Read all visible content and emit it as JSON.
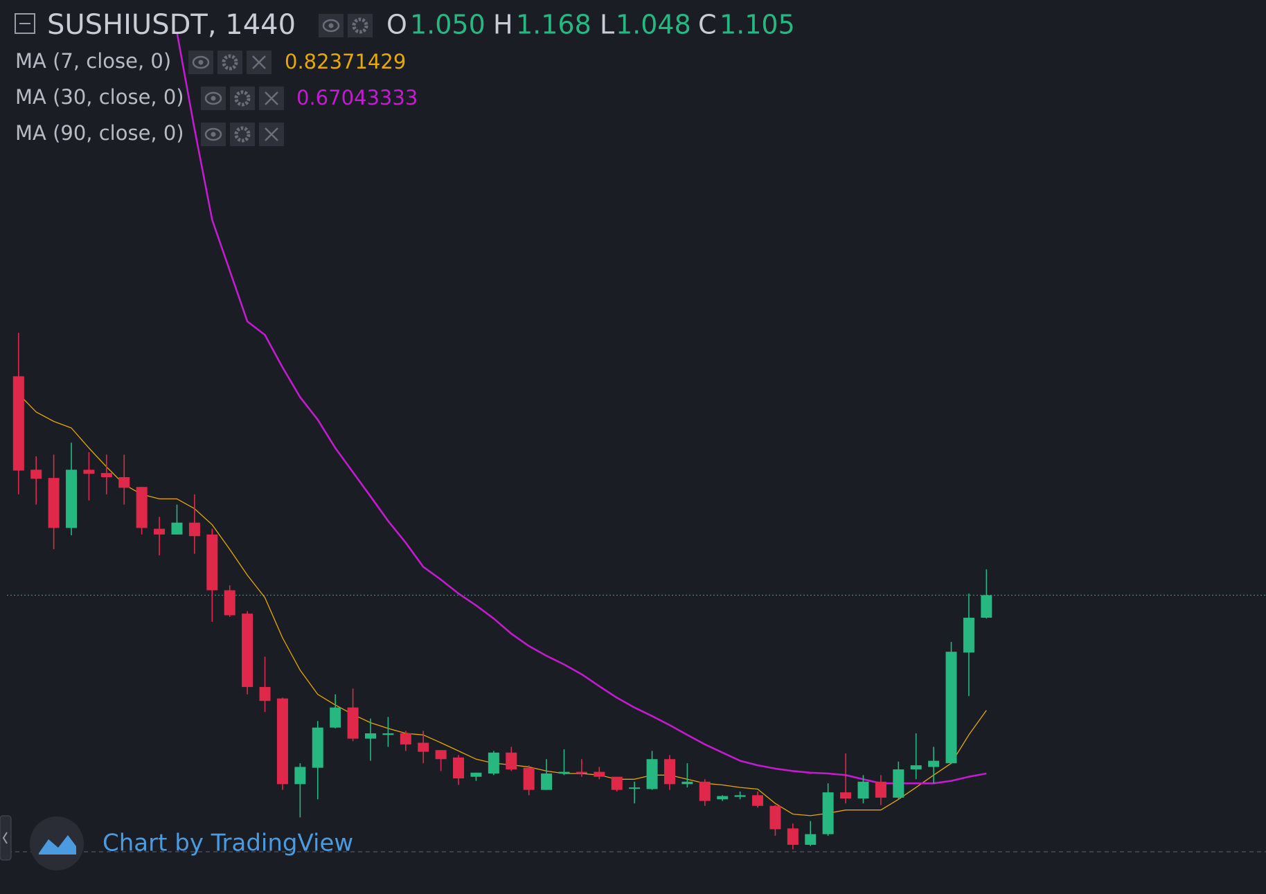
{
  "chart_data": {
    "type": "candlestick",
    "title": "SUSHIUSDT, 1440",
    "ohlc_keys": [
      "O",
      "H",
      "L",
      "C"
    ],
    "ohlc_value_labels": [
      "1.050",
      "1.168",
      "1.048",
      "1.105"
    ],
    "up_color": "#26b880",
    "down_color": "#e0294a",
    "ylim": [
      0.376,
      2.557
    ],
    "open": [
      1.639,
      1.411,
      1.391,
      1.269,
      1.411,
      1.403,
      1.393,
      1.369,
      1.267,
      1.253,
      1.282,
      1.253,
      1.117,
      1.06,
      0.881,
      0.853,
      0.644,
      0.684,
      0.782,
      0.831,
      0.755,
      0.764,
      0.768,
      0.745,
      0.727,
      0.709,
      0.662,
      0.67,
      0.721,
      0.684,
      0.63,
      0.67,
      0.674,
      0.674,
      0.662,
      0.634,
      0.632,
      0.705,
      0.644,
      0.65,
      0.607,
      0.613,
      0.617,
      0.591,
      0.536,
      0.496,
      0.522,
      0.624,
      0.609,
      0.65,
      0.611,
      0.68,
      0.686,
      0.695,
      0.965,
      1.05
    ],
    "high": [
      1.745,
      1.444,
      1.448,
      1.477,
      1.454,
      1.448,
      1.448,
      1.369,
      1.296,
      1.326,
      1.351,
      1.267,
      1.129,
      1.066,
      0.955,
      0.855,
      0.695,
      0.798,
      0.863,
      0.877,
      0.804,
      0.808,
      0.774,
      0.774,
      0.727,
      0.715,
      0.672,
      0.725,
      0.735,
      0.69,
      0.705,
      0.729,
      0.705,
      0.686,
      0.662,
      0.65,
      0.725,
      0.715,
      0.695,
      0.656,
      0.617,
      0.626,
      0.626,
      0.593,
      0.548,
      0.554,
      0.646,
      0.719,
      0.666,
      0.666,
      0.699,
      0.768,
      0.735,
      0.991,
      1.109,
      1.168
    ],
    "low": [
      1.351,
      1.326,
      1.217,
      1.251,
      1.336,
      1.351,
      1.326,
      1.253,
      1.202,
      1.253,
      1.206,
      1.04,
      1.052,
      0.863,
      0.82,
      0.63,
      0.563,
      0.607,
      0.78,
      0.749,
      0.701,
      0.735,
      0.725,
      0.695,
      0.676,
      0.642,
      0.652,
      0.666,
      0.676,
      0.617,
      0.63,
      0.666,
      0.662,
      0.656,
      0.626,
      0.597,
      0.63,
      0.63,
      0.636,
      0.591,
      0.603,
      0.607,
      0.587,
      0.518,
      0.485,
      0.493,
      0.518,
      0.597,
      0.597,
      0.593,
      0.607,
      0.656,
      0.646,
      0.693,
      0.859,
      1.048
    ],
    "close": [
      1.409,
      1.389,
      1.269,
      1.411,
      1.401,
      1.393,
      1.367,
      1.269,
      1.253,
      1.282,
      1.249,
      1.117,
      1.056,
      0.881,
      0.847,
      0.644,
      0.686,
      0.782,
      0.831,
      0.755,
      0.768,
      0.768,
      0.741,
      0.723,
      0.705,
      0.658,
      0.672,
      0.721,
      0.68,
      0.63,
      0.67,
      0.674,
      0.67,
      0.662,
      0.63,
      0.636,
      0.705,
      0.644,
      0.65,
      0.603,
      0.615,
      0.617,
      0.591,
      0.534,
      0.496,
      0.522,
      0.624,
      0.609,
      0.65,
      0.611,
      0.68,
      0.69,
      0.701,
      0.967,
      1.05,
      1.105
    ],
    "series": [
      {
        "name": "MA (7, close, 0)",
        "color": "#e8a800",
        "last_value": 0.82371429,
        "values": [
          1.596,
          1.552,
          1.529,
          1.513,
          1.464,
          1.418,
          1.375,
          1.351,
          1.34,
          1.34,
          1.316,
          1.277,
          1.217,
          1.154,
          1.099,
          1.001,
          0.922,
          0.863,
          0.837,
          0.814,
          0.794,
          0.78,
          0.768,
          0.764,
          0.745,
          0.725,
          0.705,
          0.695,
          0.691,
          0.686,
          0.676,
          0.67,
          0.67,
          0.666,
          0.656,
          0.656,
          0.666,
          0.666,
          0.656,
          0.646,
          0.642,
          0.636,
          0.632,
          0.597,
          0.571,
          0.567,
          0.573,
          0.581,
          0.581,
          0.581,
          0.607,
          0.636,
          0.666,
          0.695,
          0.764,
          0.824
        ]
      },
      {
        "name": "MA (30, close, 0)",
        "color": "#c31bd0",
        "last_value": 0.67043333,
        "values": [
          null,
          null,
          null,
          null,
          null,
          null,
          null,
          null,
          null,
          2.478,
          2.242,
          2.021,
          1.897,
          1.773,
          1.74,
          1.661,
          1.588,
          1.533,
          1.464,
          1.405,
          1.346,
          1.286,
          1.233,
          1.174,
          1.143,
          1.109,
          1.08,
          1.048,
          1.011,
          0.981,
          0.957,
          0.936,
          0.912,
          0.883,
          0.855,
          0.831,
          0.81,
          0.788,
          0.764,
          0.741,
          0.721,
          0.701,
          0.69,
          0.682,
          0.676,
          0.672,
          0.67,
          0.666,
          0.656,
          0.646,
          0.646,
          0.646,
          0.646,
          0.652,
          0.662,
          0.67
        ]
      },
      {
        "name": "MA (90, close, 0)",
        "color": "#2196f3"
      }
    ],
    "current_price_line": true,
    "watermark": "Chart by TradingView"
  }
}
